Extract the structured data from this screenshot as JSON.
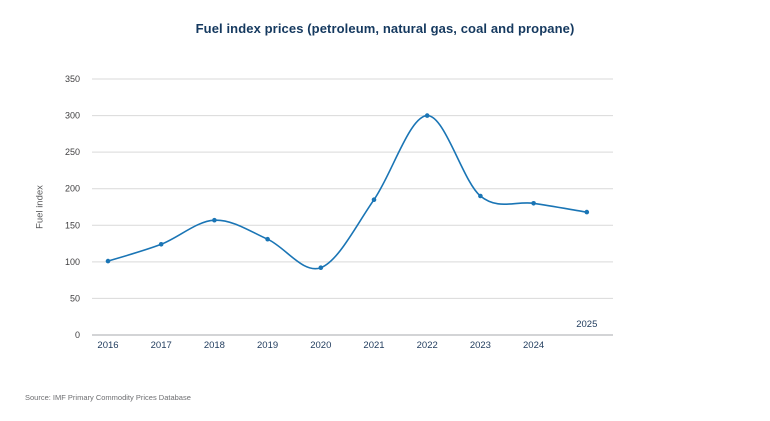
{
  "source": "Source: IMF Primary Commodity Prices Database",
  "colors": {
    "background": "#ffffff",
    "line": "#1a75b5",
    "marker": "#1a75b5",
    "title": "#15395f",
    "x_tick": "#1e3a5c",
    "y_tick": "#414042",
    "y_axis_title": "#58595b",
    "gridline": "#d9d9d9",
    "axis_line": "#a7a9ac",
    "source": "#6d6e71"
  },
  "chart_data": {
    "type": "line",
    "title": "Fuel index prices (petroleum, natural gas, coal and propane)",
    "xlabel": "",
    "ylabel": "Fuel index",
    "categories": [
      "2016",
      "2017",
      "2018",
      "2019",
      "2020",
      "2021",
      "2022",
      "2023",
      "2024",
      "2025"
    ],
    "series": [
      {
        "name": "Fuel index",
        "values": [
          101,
          124,
          157,
          131,
          92,
          185,
          300,
          190,
          180,
          168
        ]
      }
    ],
    "ylim": [
      0,
      350
    ],
    "ytick_step": 50,
    "yticks": [
      0,
      50,
      100,
      150,
      200,
      250,
      300,
      350
    ],
    "grid": "horizontal",
    "legend_position": "none",
    "marker": "circle",
    "smooth": true,
    "note_last_x_label_above_axis": true
  }
}
